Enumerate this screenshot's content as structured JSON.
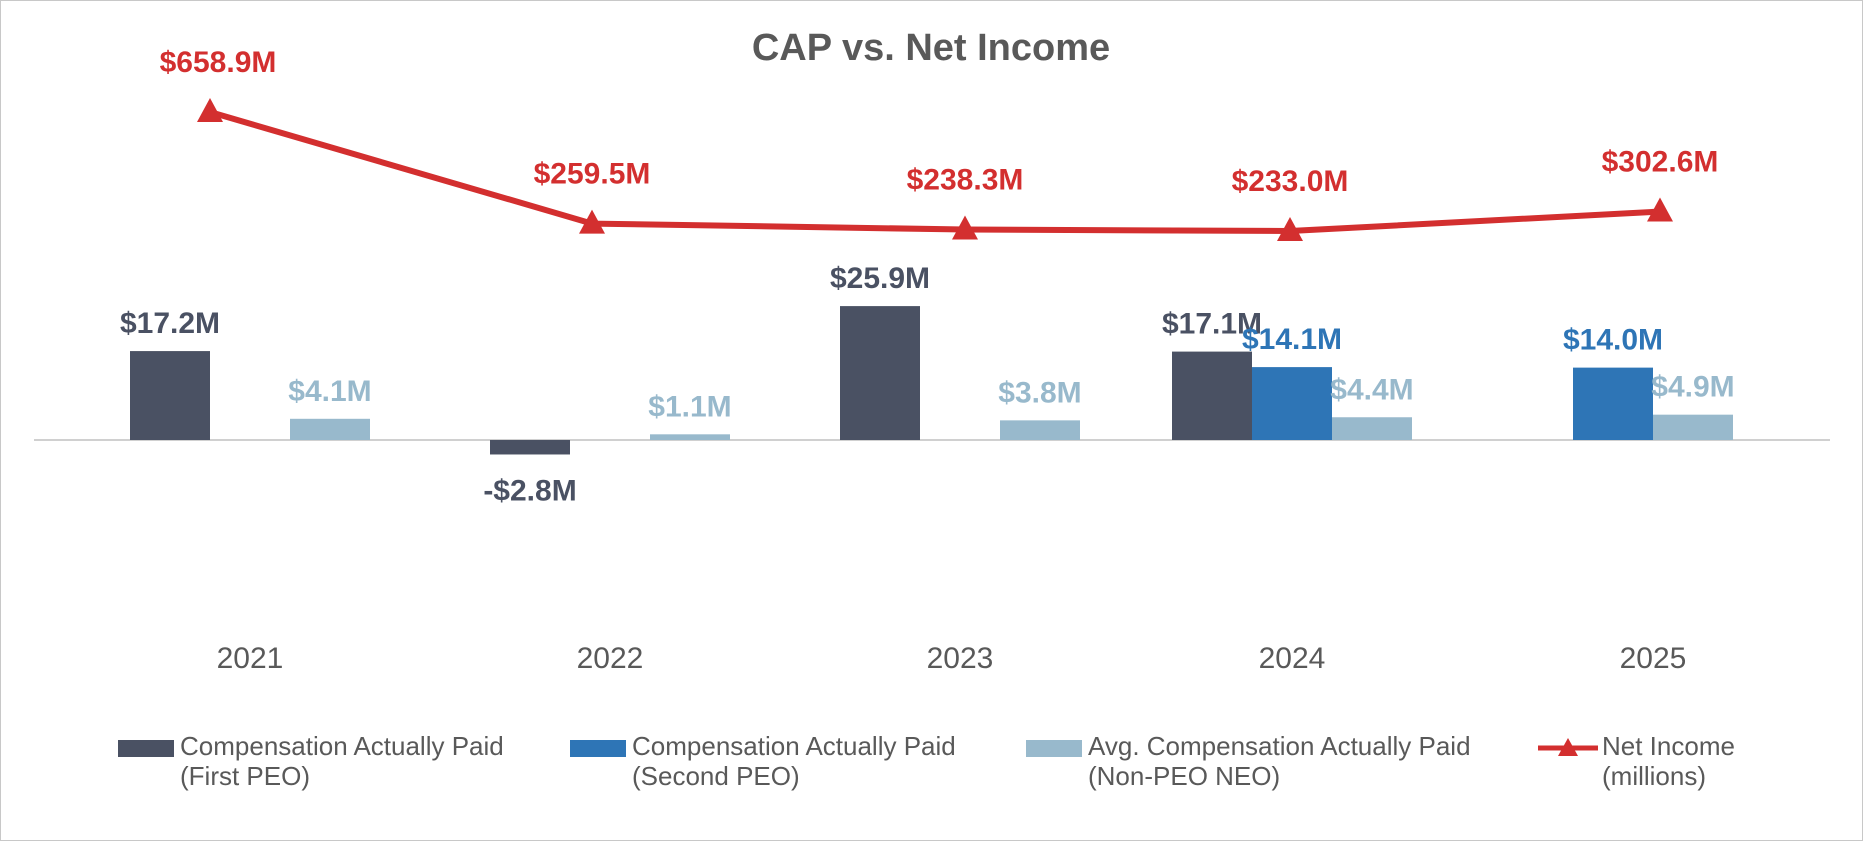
{
  "chart_data": {
    "type": "bar",
    "title": "CAP vs. Net Income",
    "categories": [
      "2021",
      "2022",
      "2023",
      "2024",
      "2025"
    ],
    "series": [
      {
        "name": "Compensation Actually Paid (First PEO)",
        "legend_lines": [
          "Compensation Actually Paid",
          "(First PEO)"
        ],
        "type": "bar",
        "color": "#4a5163",
        "label_color": "#4a5163",
        "values": [
          17.2,
          -2.8,
          25.9,
          17.1,
          null
        ],
        "labels": [
          "$17.2M",
          "-$2.8M",
          "$25.9M",
          "$17.1M",
          ""
        ]
      },
      {
        "name": "Compensation Actually Paid (Second PEO)",
        "legend_lines": [
          "Compensation Actually Paid",
          "(Second PEO)"
        ],
        "type": "bar",
        "color": "#2e75b6",
        "label_color": "#2e75b6",
        "values": [
          null,
          null,
          null,
          14.1,
          14.0
        ],
        "labels": [
          "",
          "",
          "",
          "$14.1M",
          "$14.0M"
        ]
      },
      {
        "name": "Avg. Compensation Actually Paid (Non-PEO NEO)",
        "legend_lines": [
          "Avg. Compensation Actually Paid",
          "(Non-PEO NEO)"
        ],
        "type": "bar",
        "color": "#98b9cc",
        "label_color": "#98b9cc",
        "values": [
          4.1,
          1.1,
          3.8,
          4.4,
          4.9
        ],
        "labels": [
          "$4.1M",
          "$1.1M",
          "$3.8M",
          "$4.4M",
          "$4.9M"
        ]
      },
      {
        "name": "Net Income (millions)",
        "legend_lines": [
          "Net Income",
          "(millions)"
        ],
        "type": "line",
        "marker": "triangle",
        "color": "#d32f2f",
        "label_color": "#d32f2f",
        "values": [
          658.9,
          259.5,
          238.3,
          233.0,
          302.6
        ],
        "labels": [
          "$658.9M",
          "$259.5M",
          "$238.3M",
          "$233.0M",
          "$302.6M"
        ]
      }
    ],
    "legend_position": "bottom",
    "grid": false
  }
}
